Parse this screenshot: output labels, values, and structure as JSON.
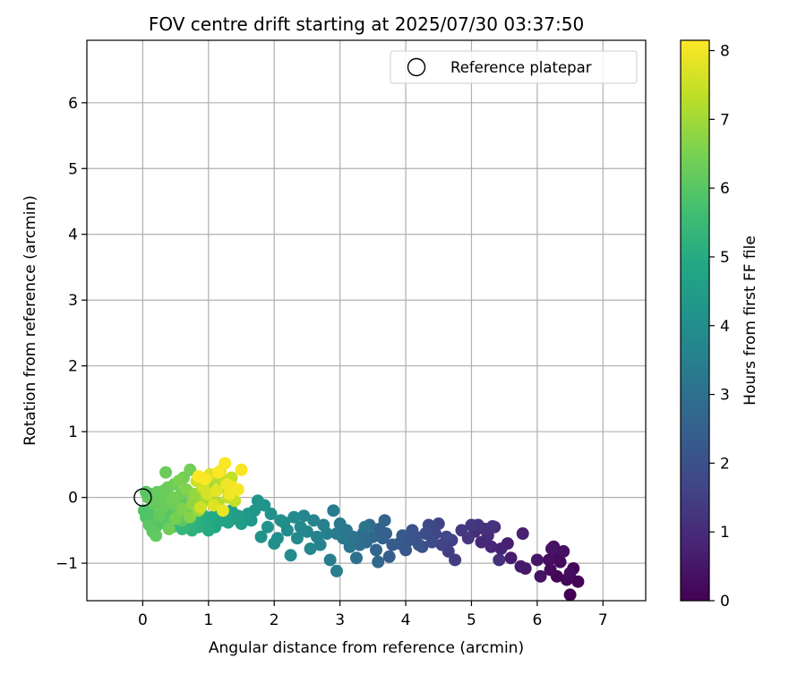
{
  "chart_data": {
    "type": "scatter",
    "title": "FOV centre drift starting at 2025/07/30 03:37:50",
    "xlabel": "Angular distance from reference (arcmin)",
    "ylabel": "Rotation from reference (arcmin)",
    "xlim": [
      -0.85,
      7.65
    ],
    "ylim": [
      -1.57,
      6.95
    ],
    "xticks": [
      0,
      1,
      2,
      3,
      4,
      5,
      6,
      7
    ],
    "yticks": [
      -1,
      0,
      1,
      2,
      3,
      4,
      5,
      6
    ],
    "grid": true,
    "legend": {
      "placement": "top-right",
      "entries": [
        "Reference platepar"
      ]
    },
    "reference_point": {
      "x": 0,
      "y": 0,
      "label": "Reference platepar"
    },
    "colorbar": {
      "label": "Hours from first FF file",
      "range": [
        0,
        8.15
      ],
      "ticks": [
        0,
        1,
        2,
        3,
        4,
        5,
        6,
        7,
        8
      ],
      "colormap": "viridis"
    },
    "series": [
      {
        "x": [
          6.5,
          6.62,
          6.3,
          6.55,
          6.45,
          6.2,
          6.35,
          6.28,
          6.5,
          6.18,
          6.25,
          6.4,
          6.05,
          6.22
        ],
        "y": [
          -1.48,
          -1.28,
          -1.2,
          -1.08,
          -1.25,
          -1.1,
          -0.98,
          -0.92,
          -1.15,
          -0.95,
          -0.75,
          -0.82,
          -1.2,
          -0.78
        ],
        "hours": [
          0.0,
          0.05,
          0.1,
          0.12,
          0.15,
          0.2,
          0.22,
          0.25,
          0.28,
          0.3,
          0.33,
          0.36,
          0.4,
          0.45
        ]
      },
      {
        "x": [
          6.0,
          5.82,
          5.75,
          5.6,
          5.55,
          5.78,
          5.45,
          5.3,
          5.35,
          5.15,
          5.25,
          5.05,
          5.2,
          5.42,
          5.32,
          5.1
        ],
        "y": [
          -0.95,
          -1.08,
          -1.05,
          -0.92,
          -0.7,
          -0.55,
          -0.78,
          -0.75,
          -0.45,
          -0.68,
          -0.58,
          -0.52,
          -0.48,
          -0.95,
          -0.44,
          -0.42
        ],
        "hours": [
          0.5,
          0.55,
          0.6,
          0.65,
          0.7,
          0.75,
          0.8,
          0.85,
          0.9,
          0.95,
          1.0,
          1.05,
          1.1,
          1.15,
          1.2,
          1.25
        ]
      },
      {
        "x": [
          4.95,
          5.0,
          4.85,
          4.75,
          4.65,
          4.7,
          4.55,
          4.5,
          4.45,
          4.62,
          4.35,
          4.4,
          4.3,
          4.25,
          4.15,
          4.1,
          4.05,
          4.2,
          4.0,
          3.95,
          3.9
        ],
        "y": [
          -0.62,
          -0.42,
          -0.5,
          -0.95,
          -0.82,
          -0.65,
          -0.72,
          -0.4,
          -0.55,
          -0.6,
          -0.42,
          -0.68,
          -0.55,
          -0.75,
          -0.6,
          -0.5,
          -0.65,
          -0.72,
          -0.8,
          -0.58,
          -0.7
        ],
        "hours": [
          1.3,
          1.35,
          1.4,
          1.45,
          1.5,
          1.55,
          1.6,
          1.65,
          1.7,
          1.75,
          1.8,
          1.85,
          1.9,
          1.95,
          2.0,
          2.05,
          2.1,
          2.15,
          2.2,
          2.25,
          2.3
        ]
      },
      {
        "x": [
          3.8,
          3.75,
          3.7,
          3.65,
          3.6,
          3.68,
          3.55,
          3.5,
          3.58,
          3.45,
          3.4,
          3.35,
          3.3,
          3.25,
          3.2,
          3.38,
          3.15,
          3.1,
          3.05,
          3.0,
          2.95
        ],
        "y": [
          -0.72,
          -0.9,
          -0.55,
          -0.62,
          -0.48,
          -0.35,
          -0.8,
          -0.6,
          -0.98,
          -0.42,
          -0.68,
          -0.55,
          -0.72,
          -0.92,
          -0.6,
          -0.45,
          -0.75,
          -0.5,
          -0.62,
          -0.4,
          -0.55
        ],
        "hours": [
          2.35,
          2.4,
          2.45,
          2.5,
          2.55,
          2.6,
          2.65,
          2.7,
          2.75,
          2.8,
          2.85,
          2.9,
          2.95,
          3.0,
          3.05,
          3.1,
          3.15,
          3.2,
          3.25,
          3.3,
          3.35
        ]
      },
      {
        "x": [
          2.9,
          2.85,
          2.95,
          2.8,
          2.75,
          2.65,
          2.7,
          2.6,
          2.5,
          2.55,
          2.45,
          2.4,
          2.35,
          2.3,
          2.25,
          2.2,
          2.15,
          2.05,
          2.1,
          2.0,
          1.95,
          1.9,
          1.85,
          1.8
        ],
        "y": [
          -0.2,
          -0.95,
          -1.12,
          -0.55,
          -0.42,
          -0.6,
          -0.72,
          -0.35,
          -0.52,
          -0.78,
          -0.28,
          -0.45,
          -0.62,
          -0.3,
          -0.88,
          -0.5,
          -0.38,
          -0.62,
          -0.35,
          -0.7,
          -0.25,
          -0.45,
          -0.12,
          -0.6
        ],
        "hours": [
          3.4,
          3.45,
          3.48,
          3.5,
          3.55,
          3.6,
          3.62,
          3.65,
          3.7,
          3.72,
          3.75,
          3.8,
          3.82,
          3.85,
          3.88,
          3.9,
          3.95,
          4.0,
          4.02,
          4.05,
          4.08,
          4.1,
          4.12,
          4.15
        ]
      },
      {
        "x": [
          1.75,
          1.7,
          1.65,
          1.6,
          1.55,
          1.5,
          1.45,
          1.4,
          1.35,
          1.3,
          1.25,
          1.2,
          1.15,
          1.1,
          1.05,
          1.0,
          0.95,
          0.9,
          0.85,
          0.8,
          0.75,
          0.7,
          0.65,
          0.6,
          0.55,
          0.5,
          0.45,
          0.4,
          0.35,
          0.3,
          0.25,
          0.2,
          0.15,
          0.1
        ],
        "y": [
          -0.05,
          -0.2,
          -0.35,
          -0.25,
          -0.3,
          -0.4,
          -0.28,
          -0.32,
          -0.2,
          -0.38,
          -0.3,
          -0.35,
          -0.22,
          -0.45,
          -0.3,
          -0.5,
          -0.4,
          -0.25,
          -0.45,
          -0.35,
          -0.5,
          -0.42,
          -0.3,
          -0.48,
          -0.38,
          -0.2,
          -0.45,
          -0.3,
          -0.4,
          -0.25,
          -0.35,
          -0.45,
          -0.3,
          -0.2
        ],
        "hours": [
          4.2,
          4.25,
          4.3,
          4.35,
          4.4,
          4.45,
          4.5,
          4.55,
          4.6,
          4.65,
          4.7,
          4.75,
          4.8,
          4.85,
          4.9,
          4.95,
          5.0,
          5.05,
          5.1,
          5.15,
          5.2,
          5.25,
          5.3,
          5.35,
          5.4,
          5.45,
          5.5,
          5.55,
          5.6,
          5.65,
          5.7,
          5.75,
          5.8,
          5.85
        ]
      },
      {
        "x": [
          0.05,
          0.1,
          0.15,
          0.2,
          0.25,
          0.3,
          0.35,
          0.4,
          0.45,
          0.5,
          0.55,
          0.6,
          0.65,
          0.7,
          0.08,
          0.12,
          0.18,
          0.22,
          0.28,
          0.32,
          0.38,
          0.42,
          0.48,
          0.52,
          0.58,
          0.62,
          0.68,
          0.72,
          0.02,
          0.05,
          0.1,
          0.15,
          0.2,
          0.25,
          0.3,
          0.35,
          0.4,
          0.45,
          0.5,
          0.55,
          0.6,
          0.66,
          0.72,
          0.78
        ],
        "y": [
          -0.3,
          -0.2,
          -0.35,
          -0.45,
          -0.1,
          -0.25,
          -0.4,
          -0.15,
          -0.3,
          -0.05,
          -0.2,
          -0.35,
          -0.1,
          -0.25,
          0.0,
          0.05,
          -0.1,
          0.08,
          -0.05,
          0.1,
          0.15,
          -0.08,
          0.2,
          -0.12,
          0.05,
          0.3,
          0.1,
          0.42,
          -0.2,
          0.08,
          -0.42,
          -0.52,
          -0.58,
          -0.28,
          -0.15,
          0.38,
          -0.48,
          0.0,
          -0.32,
          0.25,
          -0.18,
          0.12,
          -0.3,
          -0.05
        ],
        "hours": [
          5.88,
          5.9,
          5.92,
          5.94,
          5.96,
          5.98,
          6.0,
          6.02,
          6.04,
          6.06,
          6.08,
          6.1,
          6.12,
          6.14,
          6.16,
          6.18,
          6.2,
          6.22,
          6.24,
          6.26,
          6.28,
          6.3,
          6.32,
          6.34,
          6.36,
          6.38,
          6.4,
          6.42,
          5.9,
          6.0,
          6.05,
          6.1,
          6.15,
          6.2,
          6.25,
          6.3,
          6.35,
          6.4,
          6.45,
          6.5,
          6.55,
          6.6,
          6.65,
          6.7
        ]
      },
      {
        "x": [
          0.75,
          0.8,
          0.85,
          0.9,
          0.95,
          1.0,
          1.05,
          1.1,
          1.15,
          1.2,
          1.25,
          1.3,
          1.35,
          1.4,
          0.82,
          0.88,
          0.92,
          0.98,
          1.02,
          1.08,
          1.12,
          1.18,
          1.22,
          1.28,
          1.32,
          1.38,
          1.45,
          1.5,
          1.25,
          1.15,
          0.95,
          0.85
        ],
        "y": [
          -0.1,
          0.05,
          -0.2,
          0.1,
          -0.05,
          0.2,
          0.0,
          0.3,
          -0.1,
          0.15,
          0.25,
          0.0,
          0.3,
          -0.05,
          0.25,
          -0.15,
          0.15,
          0.05,
          0.35,
          -0.12,
          0.1,
          0.4,
          -0.2,
          0.2,
          0.05,
          0.15,
          0.12,
          0.42,
          0.52,
          0.38,
          0.28,
          0.32
        ],
        "hours": [
          6.8,
          6.85,
          6.9,
          6.95,
          7.0,
          7.05,
          7.1,
          7.15,
          7.2,
          7.25,
          7.3,
          7.35,
          7.4,
          7.45,
          7.5,
          7.55,
          7.6,
          7.65,
          7.7,
          7.75,
          7.8,
          7.85,
          7.9,
          7.95,
          8.0,
          8.02,
          8.05,
          8.08,
          8.1,
          8.12,
          8.14,
          8.15
        ]
      }
    ]
  }
}
